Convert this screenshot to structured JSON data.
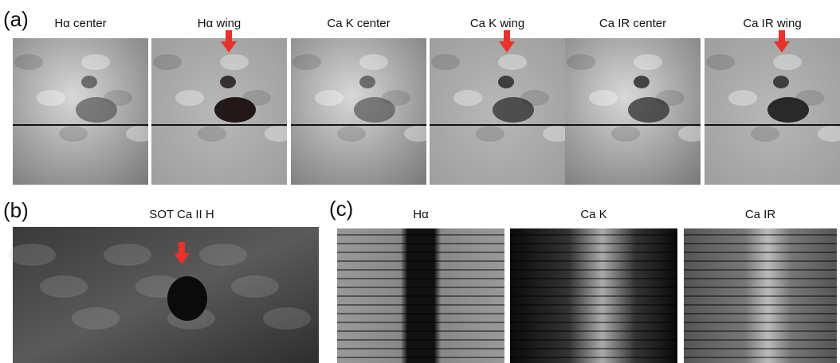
{
  "panel_a": {
    "label": "(a)",
    "titles": [
      "Hα center",
      "Hα wing",
      "Ca K center",
      "Ca K wing",
      "Ca IR center",
      "Ca IR wing"
    ]
  },
  "panel_b": {
    "label": "(b)",
    "title": "SOT Ca II H"
  },
  "panel_c": {
    "label": "(c)",
    "titles": [
      "Hα",
      "Ca K",
      "Ca IR"
    ]
  }
}
